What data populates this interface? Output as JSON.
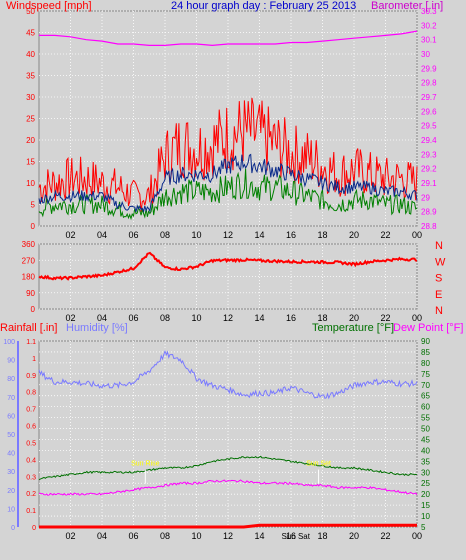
{
  "header": {
    "title": "24 hour graph day : February 25 2013",
    "left_label": "Windspeed [mph]",
    "right_label": "Barometer [.in]"
  },
  "colors": {
    "background": "#d4d4d4",
    "wind_gust": "#ff0000",
    "wind_avg_line": "#0a2a8a",
    "wind_speed": "#008000",
    "barometer": "#ff00ff",
    "direction": "#ff0000",
    "humidity": "#7a7aff",
    "temperature": "#007000",
    "dewpoint": "#ff00ff",
    "rain": "#ff0000",
    "marker": "#ffff00",
    "title": "#0000cc"
  },
  "chart_data": [
    {
      "type": "line",
      "title": "24 hour graph day : February 25 2013",
      "ylabel": "Windspeed [mph]",
      "y2label": "Barometer [.in]",
      "ylim": [
        0,
        50
      ],
      "y2lim": [
        28.8,
        30.3
      ],
      "yticks": [
        0,
        5,
        10,
        15,
        20,
        25,
        30,
        35,
        40,
        45,
        50
      ],
      "y2ticks": [
        "28.8",
        "28.9",
        "29",
        "29.1",
        "29.2",
        "29.3",
        "29.4",
        "29.5",
        "29.6",
        "29.7",
        "29.8",
        "29.9",
        "30",
        "30.1",
        "30.2",
        "30.3"
      ],
      "xticks": [
        "02",
        "04",
        "06",
        "08",
        "10",
        "12",
        "14",
        "16",
        "18",
        "20",
        "22",
        "00"
      ],
      "grid": true,
      "x": [
        0,
        1,
        2,
        3,
        4,
        5,
        6,
        7,
        8,
        9,
        10,
        11,
        12,
        13,
        14,
        15,
        16,
        17,
        18,
        19,
        20,
        21,
        22,
        23,
        24
      ],
      "series": [
        {
          "name": "gust",
          "values": [
            9,
            10,
            11,
            11,
            10,
            9,
            7,
            7,
            16,
            19,
            18,
            19,
            21,
            22,
            21,
            19,
            17,
            16,
            14,
            12,
            13,
            12,
            11,
            11,
            10
          ]
        },
        {
          "name": "average",
          "values": [
            6,
            7,
            7,
            7,
            7,
            5,
            4,
            4,
            11,
            12,
            12,
            12,
            14,
            15,
            14,
            13,
            12,
            11,
            10,
            9,
            9,
            9,
            8,
            8,
            7
          ]
        },
        {
          "name": "speed",
          "values": [
            4,
            5,
            5,
            5,
            5,
            4,
            3,
            3,
            7,
            8,
            8,
            8,
            9,
            10,
            9,
            9,
            8,
            7,
            6,
            5,
            6,
            6,
            5,
            5,
            4
          ]
        },
        {
          "name": "barometer",
          "values": [
            30.13,
            30.13,
            30.12,
            30.1,
            30.09,
            30.07,
            30.07,
            30.06,
            30.06,
            30.07,
            30.07,
            30.06,
            30.07,
            30.07,
            30.07,
            30.07,
            30.08,
            30.08,
            30.09,
            30.1,
            30.11,
            30.12,
            30.13,
            30.14,
            30.16
          ]
        }
      ]
    },
    {
      "type": "line",
      "yticks": [
        "0",
        "90",
        "180",
        "270",
        "360"
      ],
      "ylim": [
        0,
        360
      ],
      "y2ticks": [
        "N",
        "W",
        "S",
        "E",
        "N"
      ],
      "xticks": [
        "02",
        "04",
        "06",
        "08",
        "10",
        "12",
        "14",
        "16",
        "18",
        "20",
        "22",
        "00"
      ],
      "grid": true,
      "x": [
        0,
        1,
        2,
        3,
        4,
        5,
        6,
        7,
        8,
        9,
        10,
        11,
        12,
        13,
        14,
        15,
        16,
        17,
        18,
        19,
        20,
        21,
        22,
        23,
        24
      ],
      "series": [
        {
          "name": "direction",
          "values": [
            180,
            170,
            172,
            180,
            185,
            205,
            225,
            310,
            230,
            220,
            235,
            268,
            270,
            272,
            268,
            265,
            262,
            262,
            260,
            258,
            248,
            262,
            270,
            276,
            274
          ]
        }
      ]
    },
    {
      "type": "line",
      "labels": {
        "rain": "Rainfall [.in]",
        "humidity": "Humidity [%]",
        "temperature": "Temperature [°F]",
        "dewpoint": "Dew Point [°F]"
      },
      "humidity_ylim": [
        0,
        100
      ],
      "humidity_ticks": [
        "0",
        "10",
        "20",
        "30",
        "40",
        "50",
        "60",
        "70",
        "80",
        "90",
        "100"
      ],
      "rain_ylim": [
        0,
        1.1
      ],
      "rain_ticks": [
        "0",
        "0.1",
        "0.2",
        "0.3",
        "0.4",
        "0.5",
        "0.6",
        "0.7",
        "0.8",
        "0.9",
        "1",
        "1.1"
      ],
      "temp_ylim": [
        5,
        90
      ],
      "temp_ticks": [
        "5",
        "10",
        "15",
        "20",
        "25",
        "30",
        "35",
        "40",
        "45",
        "50",
        "55",
        "60",
        "65",
        "70",
        "75",
        "80",
        "85",
        "90"
      ],
      "xticks": [
        "02",
        "04",
        "06",
        "08",
        "10",
        "12",
        "14",
        "16",
        "18",
        "20",
        "22",
        "00"
      ],
      "grid": true,
      "annotations": [
        {
          "label": "Sun Rise",
          "x": 6.75
        },
        {
          "label": "Sun Set",
          "x": 17.75
        },
        {
          "label": "Sun Sat",
          "x": 16.3
        }
      ],
      "x": [
        0,
        1,
        2,
        3,
        4,
        5,
        6,
        7,
        8,
        9,
        10,
        11,
        12,
        13,
        14,
        15,
        16,
        17,
        18,
        19,
        20,
        21,
        22,
        23,
        24
      ],
      "series": [
        {
          "name": "humidity",
          "values": [
            83,
            78,
            78,
            77,
            76,
            76,
            78,
            84,
            93,
            90,
            80,
            76,
            74,
            71,
            72,
            72,
            75,
            72,
            70,
            72,
            76,
            78,
            78,
            77,
            77
          ]
        },
        {
          "name": "temperature",
          "values": [
            27,
            28,
            29,
            30,
            30,
            30,
            30,
            31,
            32,
            32,
            33,
            35,
            36,
            37,
            37,
            36,
            35,
            34,
            33,
            32,
            32,
            31,
            30,
            29,
            29
          ]
        },
        {
          "name": "dewpoint",
          "values": [
            20,
            20,
            20,
            20,
            20,
            21,
            22,
            23,
            24,
            25,
            25,
            26,
            26,
            26,
            25,
            25,
            25,
            24,
            24,
            23,
            23,
            23,
            22,
            21,
            20
          ]
        },
        {
          "name": "rainfall",
          "values": [
            0,
            0,
            0,
            0,
            0,
            0,
            0,
            0,
            0,
            0,
            0,
            0,
            0,
            0,
            0.01,
            0.01,
            0.01,
            0.01,
            0.01,
            0.01,
            0.01,
            0.01,
            0.01,
            0.01,
            0.01
          ]
        }
      ]
    }
  ]
}
